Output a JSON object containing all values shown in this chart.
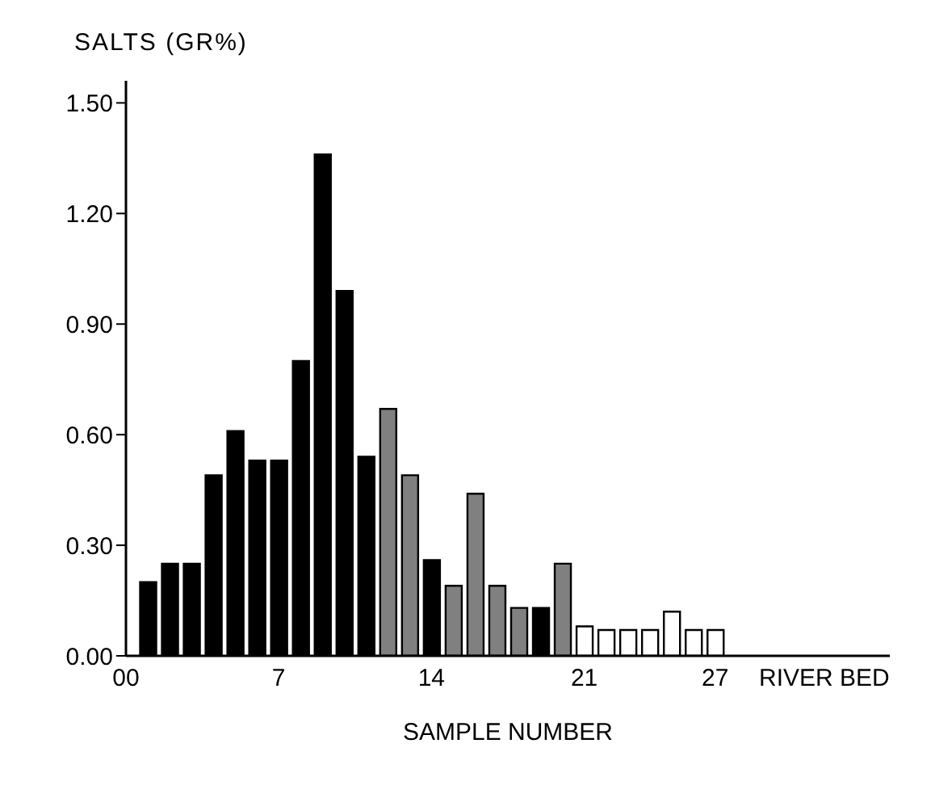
{
  "chart_data": {
    "type": "bar",
    "ylabel": "SALTS (GR%)",
    "xlabel": "SAMPLE NUMBER",
    "x": [
      1,
      2,
      3,
      4,
      5,
      6,
      7,
      8,
      9,
      10,
      11,
      12,
      13,
      14,
      15,
      16,
      17,
      18,
      19,
      20,
      21,
      22,
      23,
      24,
      25,
      26,
      27
    ],
    "values": [
      0.2,
      0.25,
      0.25,
      0.49,
      0.61,
      0.53,
      0.53,
      0.8,
      1.36,
      0.99,
      0.54,
      0.67,
      0.49,
      0.26,
      0.19,
      0.44,
      0.19,
      0.13,
      0.13,
      0.25,
      0.08,
      0.07,
      0.07,
      0.07,
      0.12,
      0.07,
      0.07
    ],
    "colors": [
      "#000000",
      "#000000",
      "#000000",
      "#000000",
      "#000000",
      "#000000",
      "#000000",
      "#000000",
      "#000000",
      "#000000",
      "#000000",
      "#808080",
      "#808080",
      "#000000",
      "#808080",
      "#808080",
      "#808080",
      "#808080",
      "#000000",
      "#808080",
      "#ffffff",
      "#ffffff",
      "#ffffff",
      "#ffffff",
      "#ffffff",
      "#ffffff",
      "#ffffff"
    ],
    "xlim": [
      0,
      35
    ],
    "xticks": [
      {
        "value": 0,
        "label": "00"
      },
      7,
      14,
      21,
      27,
      {
        "value": 32,
        "label": "RIVER BED"
      }
    ],
    "ylim": [
      0,
      1.56
    ],
    "yticks": [
      {
        "value": 0,
        "label": "0.00"
      },
      {
        "value": 0.3,
        "label": "0.30"
      },
      {
        "value": 0.6,
        "label": "0.60"
      },
      {
        "value": 0.9,
        "label": "0.90"
      },
      {
        "value": 1.2,
        "label": "1.20"
      },
      {
        "value": 1.5,
        "label": "1.50"
      }
    ],
    "grid": false,
    "legend": false
  }
}
